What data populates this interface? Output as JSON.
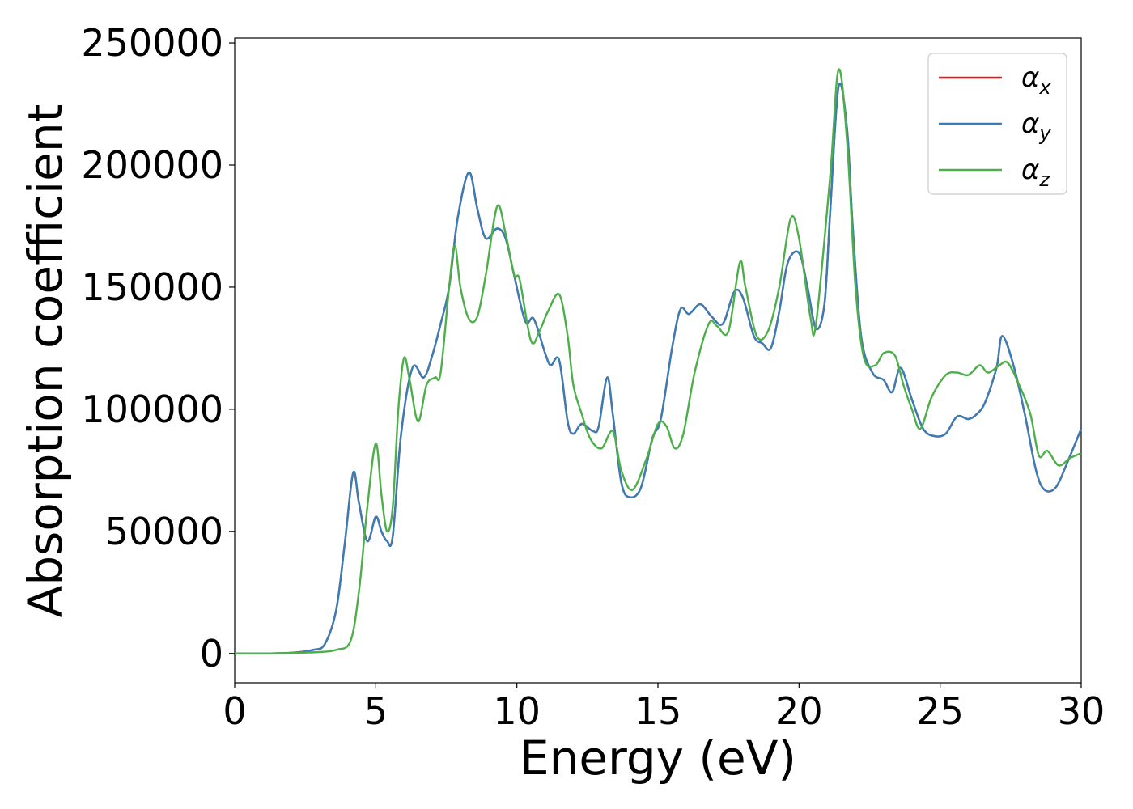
{
  "chart_data": {
    "type": "line",
    "xlabel": "Energy (eV)",
    "ylabel": "Absorption coefficient",
    "xlim": [
      0,
      30
    ],
    "ylim": [
      -12000,
      252000
    ],
    "xticks": [
      "0",
      "5",
      "10",
      "15",
      "20",
      "25",
      "30"
    ],
    "xtick_values": [
      0,
      5,
      10,
      15,
      20,
      25,
      30
    ],
    "yticks": [
      "0",
      "50000",
      "100000",
      "150000",
      "200000",
      "250000"
    ],
    "ytick_values": [
      0,
      50000,
      100000,
      150000,
      200000,
      250000
    ],
    "grid": false,
    "legend_position": "top-right",
    "series": [
      {
        "name": "α",
        "subscript": "x",
        "color": "#e41a1c",
        "points": [
          [
            0,
            0
          ],
          [
            1,
            0
          ],
          [
            2,
            300
          ],
          [
            2.8,
            1500
          ],
          [
            3.2,
            4000
          ],
          [
            3.6,
            18000
          ],
          [
            3.9,
            45000
          ],
          [
            4.2,
            74000
          ],
          [
            4.4,
            62000
          ],
          [
            4.7,
            46000
          ],
          [
            5.0,
            56000
          ],
          [
            5.2,
            50000
          ],
          [
            5.4,
            46000
          ],
          [
            5.6,
            48000
          ],
          [
            5.9,
            90000
          ],
          [
            6.3,
            117000
          ],
          [
            6.7,
            113000
          ],
          [
            7.0,
            122000
          ],
          [
            7.3,
            135000
          ],
          [
            7.6,
            150000
          ],
          [
            7.9,
            178000
          ],
          [
            8.3,
            197000
          ],
          [
            8.6,
            182000
          ],
          [
            8.9,
            170000
          ],
          [
            9.3,
            174000
          ],
          [
            9.6,
            170000
          ],
          [
            9.9,
            155000
          ],
          [
            10.3,
            136000
          ],
          [
            10.6,
            137000
          ],
          [
            11.0,
            123000
          ],
          [
            11.2,
            118000
          ],
          [
            11.5,
            120000
          ],
          [
            11.8,
            95000
          ],
          [
            12.0,
            90000
          ],
          [
            12.3,
            94000
          ],
          [
            12.7,
            91000
          ],
          [
            12.9,
            93000
          ],
          [
            13.2,
            113000
          ],
          [
            13.4,
            98000
          ],
          [
            13.7,
            70000
          ],
          [
            14.0,
            64000
          ],
          [
            14.4,
            68000
          ],
          [
            14.8,
            88000
          ],
          [
            15.1,
            96000
          ],
          [
            15.5,
            125000
          ],
          [
            15.8,
            141000
          ],
          [
            16.1,
            139000
          ],
          [
            16.5,
            143000
          ],
          [
            16.9,
            138000
          ],
          [
            17.3,
            135000
          ],
          [
            17.7,
            148000
          ],
          [
            18.0,
            146000
          ],
          [
            18.4,
            130000
          ],
          [
            18.7,
            127000
          ],
          [
            19.0,
            125000
          ],
          [
            19.3,
            140000
          ],
          [
            19.6,
            160000
          ],
          [
            20.0,
            164000
          ],
          [
            20.3,
            150000
          ],
          [
            20.6,
            133000
          ],
          [
            20.9,
            143000
          ],
          [
            21.1,
            180000
          ],
          [
            21.4,
            232000
          ],
          [
            21.7,
            215000
          ],
          [
            21.9,
            175000
          ],
          [
            22.2,
            130000
          ],
          [
            22.6,
            115000
          ],
          [
            23.0,
            112000
          ],
          [
            23.3,
            107000
          ],
          [
            23.6,
            117000
          ],
          [
            24.0,
            104000
          ],
          [
            24.4,
            92000
          ],
          [
            24.8,
            89000
          ],
          [
            25.2,
            90000
          ],
          [
            25.6,
            97000
          ],
          [
            26.0,
            96000
          ],
          [
            26.3,
            98000
          ],
          [
            26.6,
            103000
          ],
          [
            27.0,
            117000
          ],
          [
            27.2,
            130000
          ],
          [
            27.6,
            118000
          ],
          [
            28.0,
            98000
          ],
          [
            28.4,
            75000
          ],
          [
            28.7,
            67000
          ],
          [
            29.1,
            68000
          ],
          [
            29.5,
            78000
          ],
          [
            30.0,
            92000
          ]
        ]
      },
      {
        "name": "α",
        "subscript": "y",
        "color": "#377eb8",
        "points": [
          [
            0,
            0
          ],
          [
            1,
            0
          ],
          [
            2,
            300
          ],
          [
            2.8,
            1500
          ],
          [
            3.2,
            4000
          ],
          [
            3.6,
            18000
          ],
          [
            3.9,
            45000
          ],
          [
            4.2,
            74000
          ],
          [
            4.4,
            62000
          ],
          [
            4.7,
            46000
          ],
          [
            5.0,
            56000
          ],
          [
            5.2,
            50000
          ],
          [
            5.4,
            46000
          ],
          [
            5.6,
            48000
          ],
          [
            5.9,
            90000
          ],
          [
            6.3,
            117000
          ],
          [
            6.7,
            113000
          ],
          [
            7.0,
            122000
          ],
          [
            7.3,
            135000
          ],
          [
            7.6,
            150000
          ],
          [
            7.9,
            178000
          ],
          [
            8.3,
            197000
          ],
          [
            8.6,
            182000
          ],
          [
            8.9,
            170000
          ],
          [
            9.3,
            174000
          ],
          [
            9.6,
            170000
          ],
          [
            9.9,
            155000
          ],
          [
            10.3,
            136000
          ],
          [
            10.6,
            137000
          ],
          [
            11.0,
            123000
          ],
          [
            11.2,
            118000
          ],
          [
            11.5,
            120000
          ],
          [
            11.8,
            95000
          ],
          [
            12.0,
            90000
          ],
          [
            12.3,
            94000
          ],
          [
            12.7,
            91000
          ],
          [
            12.9,
            93000
          ],
          [
            13.2,
            113000
          ],
          [
            13.4,
            98000
          ],
          [
            13.7,
            70000
          ],
          [
            14.0,
            64000
          ],
          [
            14.4,
            68000
          ],
          [
            14.8,
            88000
          ],
          [
            15.1,
            96000
          ],
          [
            15.5,
            125000
          ],
          [
            15.8,
            141000
          ],
          [
            16.1,
            139000
          ],
          [
            16.5,
            143000
          ],
          [
            16.9,
            138000
          ],
          [
            17.3,
            135000
          ],
          [
            17.7,
            148000
          ],
          [
            18.0,
            146000
          ],
          [
            18.4,
            130000
          ],
          [
            18.7,
            127000
          ],
          [
            19.0,
            125000
          ],
          [
            19.3,
            140000
          ],
          [
            19.6,
            160000
          ],
          [
            20.0,
            164000
          ],
          [
            20.3,
            150000
          ],
          [
            20.6,
            133000
          ],
          [
            20.9,
            143000
          ],
          [
            21.1,
            180000
          ],
          [
            21.4,
            232000
          ],
          [
            21.7,
            215000
          ],
          [
            21.9,
            175000
          ],
          [
            22.2,
            130000
          ],
          [
            22.6,
            115000
          ],
          [
            23.0,
            112000
          ],
          [
            23.3,
            107000
          ],
          [
            23.6,
            117000
          ],
          [
            24.0,
            104000
          ],
          [
            24.4,
            92000
          ],
          [
            24.8,
            89000
          ],
          [
            25.2,
            90000
          ],
          [
            25.6,
            97000
          ],
          [
            26.0,
            96000
          ],
          [
            26.3,
            98000
          ],
          [
            26.6,
            103000
          ],
          [
            27.0,
            117000
          ],
          [
            27.2,
            130000
          ],
          [
            27.6,
            118000
          ],
          [
            28.0,
            98000
          ],
          [
            28.4,
            75000
          ],
          [
            28.7,
            67000
          ],
          [
            29.1,
            68000
          ],
          [
            29.5,
            78000
          ],
          [
            30.0,
            92000
          ]
        ]
      },
      {
        "name": "α",
        "subscript": "z",
        "color": "#4daf4a",
        "points": [
          [
            0,
            0
          ],
          [
            1,
            0
          ],
          [
            2,
            200
          ],
          [
            3,
            600
          ],
          [
            3.6,
            1500
          ],
          [
            4.1,
            5000
          ],
          [
            4.4,
            25000
          ],
          [
            4.7,
            60000
          ],
          [
            5.0,
            86000
          ],
          [
            5.2,
            65000
          ],
          [
            5.4,
            50000
          ],
          [
            5.6,
            60000
          ],
          [
            5.8,
            100000
          ],
          [
            6.0,
            121000
          ],
          [
            6.2,
            112000
          ],
          [
            6.5,
            95000
          ],
          [
            6.8,
            110000
          ],
          [
            7.1,
            113000
          ],
          [
            7.3,
            115000
          ],
          [
            7.6,
            150000
          ],
          [
            7.8,
            167000
          ],
          [
            8.0,
            150000
          ],
          [
            8.3,
            137000
          ],
          [
            8.6,
            138000
          ],
          [
            8.9,
            155000
          ],
          [
            9.3,
            183000
          ],
          [
            9.6,
            172000
          ],
          [
            9.9,
            155000
          ],
          [
            10.1,
            153000
          ],
          [
            10.5,
            128000
          ],
          [
            10.8,
            132000
          ],
          [
            11.1,
            140000
          ],
          [
            11.5,
            147000
          ],
          [
            11.8,
            130000
          ],
          [
            12.0,
            110000
          ],
          [
            12.3,
            98000
          ],
          [
            12.6,
            88000
          ],
          [
            13.0,
            84000
          ],
          [
            13.4,
            91000
          ],
          [
            13.7,
            75000
          ],
          [
            14.1,
            67000
          ],
          [
            14.6,
            80000
          ],
          [
            15.0,
            94000
          ],
          [
            15.3,
            93000
          ],
          [
            15.6,
            84000
          ],
          [
            15.9,
            90000
          ],
          [
            16.3,
            115000
          ],
          [
            16.8,
            135000
          ],
          [
            17.1,
            134000
          ],
          [
            17.5,
            132000
          ],
          [
            17.9,
            160000
          ],
          [
            18.1,
            150000
          ],
          [
            18.5,
            130000
          ],
          [
            18.9,
            132000
          ],
          [
            19.3,
            150000
          ],
          [
            19.7,
            178000
          ],
          [
            20.0,
            170000
          ],
          [
            20.4,
            138000
          ],
          [
            20.6,
            135000
          ],
          [
            21.1,
            195000
          ],
          [
            21.4,
            239000
          ],
          [
            21.7,
            210000
          ],
          [
            22.0,
            150000
          ],
          [
            22.3,
            121000
          ],
          [
            22.7,
            118000
          ],
          [
            23.0,
            123000
          ],
          [
            23.4,
            122000
          ],
          [
            23.7,
            110000
          ],
          [
            24.0,
            100000
          ],
          [
            24.3,
            92000
          ],
          [
            24.7,
            105000
          ],
          [
            25.2,
            114000
          ],
          [
            25.6,
            115000
          ],
          [
            26.0,
            114000
          ],
          [
            26.4,
            118000
          ],
          [
            26.7,
            115000
          ],
          [
            27.1,
            118000
          ],
          [
            27.4,
            119000
          ],
          [
            27.8,
            110000
          ],
          [
            28.2,
            98000
          ],
          [
            28.5,
            81000
          ],
          [
            28.8,
            83000
          ],
          [
            29.2,
            77000
          ],
          [
            29.6,
            80000
          ],
          [
            30.0,
            82000
          ]
        ]
      }
    ]
  }
}
